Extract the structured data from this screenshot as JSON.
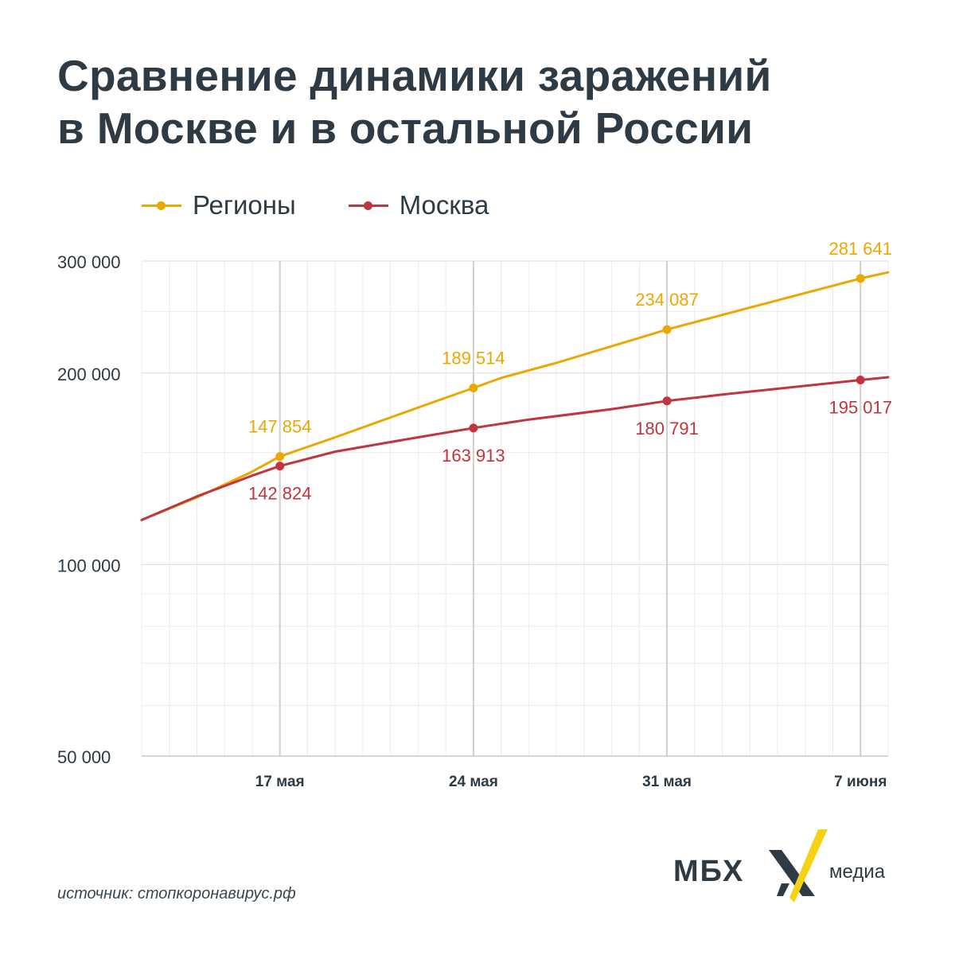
{
  "title": {
    "line1": "Сравнение динамики заражений",
    "line2": "в Москве и в остальной России"
  },
  "legend": [
    {
      "label": "Регионы",
      "color": "#eba800"
    },
    {
      "label": "Москва",
      "color": "#c0353f"
    }
  ],
  "source": "источник: стопкоронавирус.рф",
  "logo": {
    "text": "МБХ",
    "sub": "медиа",
    "accent": "#f5d313"
  },
  "chart_data": {
    "type": "line",
    "y_scale": "log",
    "ylim": [
      50000,
      300000
    ],
    "y_ticks": [
      {
        "value": 50000,
        "label": "50 000"
      },
      {
        "value": 100000,
        "label": "100 000"
      },
      {
        "value": 200000,
        "label": "200 000"
      },
      {
        "value": 300000,
        "label": "300 000"
      }
    ],
    "x_range": [
      "2020-05-12",
      "2020-06-08"
    ],
    "x_ticks": [
      {
        "date": "2020-05-17",
        "label": "17 мая"
      },
      {
        "date": "2020-05-24",
        "label": "24 мая"
      },
      {
        "date": "2020-05-31",
        "label": "31 мая"
      },
      {
        "date": "2020-06-07",
        "label": "7 июня"
      }
    ],
    "grid": true,
    "legend_position": "top-left",
    "series": [
      {
        "name": "Регионы",
        "color": "#eba800",
        "points": [
          {
            "x": "2020-05-12",
            "y": 117500
          },
          {
            "x": "2020-05-14",
            "y": 127500
          },
          {
            "x": "2020-05-16",
            "y": 140000
          },
          {
            "x": "2020-05-17",
            "y": 147854
          },
          {
            "x": "2020-05-19",
            "y": 158500
          },
          {
            "x": "2020-05-22",
            "y": 176500
          },
          {
            "x": "2020-05-24",
            "y": 189514
          },
          {
            "x": "2020-05-25",
            "y": 196500
          },
          {
            "x": "2020-05-27",
            "y": 207500
          },
          {
            "x": "2020-05-31",
            "y": 234087
          },
          {
            "x": "2020-06-03",
            "y": 253500
          },
          {
            "x": "2020-06-07",
            "y": 281641
          },
          {
            "x": "2020-06-08",
            "y": 288000
          }
        ],
        "labels": [
          {
            "x": "2020-05-17",
            "y": 147854,
            "text": "147 854"
          },
          {
            "x": "2020-05-24",
            "y": 189514,
            "text": "189 514"
          },
          {
            "x": "2020-05-31",
            "y": 234087,
            "text": "234 087"
          },
          {
            "x": "2020-06-07",
            "y": 281641,
            "text": "281 641"
          }
        ]
      },
      {
        "name": "Москва",
        "color": "#c0353f",
        "points": [
          {
            "x": "2020-05-12",
            "y": 117500
          },
          {
            "x": "2020-05-14",
            "y": 128000
          },
          {
            "x": "2020-05-16",
            "y": 138000
          },
          {
            "x": "2020-05-17",
            "y": 142824
          },
          {
            "x": "2020-05-19",
            "y": 150500
          },
          {
            "x": "2020-05-22",
            "y": 158500
          },
          {
            "x": "2020-05-24",
            "y": 163913
          },
          {
            "x": "2020-05-26",
            "y": 169000
          },
          {
            "x": "2020-05-29",
            "y": 175500
          },
          {
            "x": "2020-05-31",
            "y": 180791
          },
          {
            "x": "2020-06-02",
            "y": 185000
          },
          {
            "x": "2020-06-07",
            "y": 195017
          },
          {
            "x": "2020-06-08",
            "y": 197000
          }
        ],
        "labels": [
          {
            "x": "2020-05-17",
            "y": 142824,
            "text": "142 824"
          },
          {
            "x": "2020-05-24",
            "y": 163913,
            "text": "163 913"
          },
          {
            "x": "2020-05-31",
            "y": 180791,
            "text": "180 791"
          },
          {
            "x": "2020-06-07",
            "y": 195017,
            "text": "195 017"
          }
        ]
      }
    ]
  }
}
